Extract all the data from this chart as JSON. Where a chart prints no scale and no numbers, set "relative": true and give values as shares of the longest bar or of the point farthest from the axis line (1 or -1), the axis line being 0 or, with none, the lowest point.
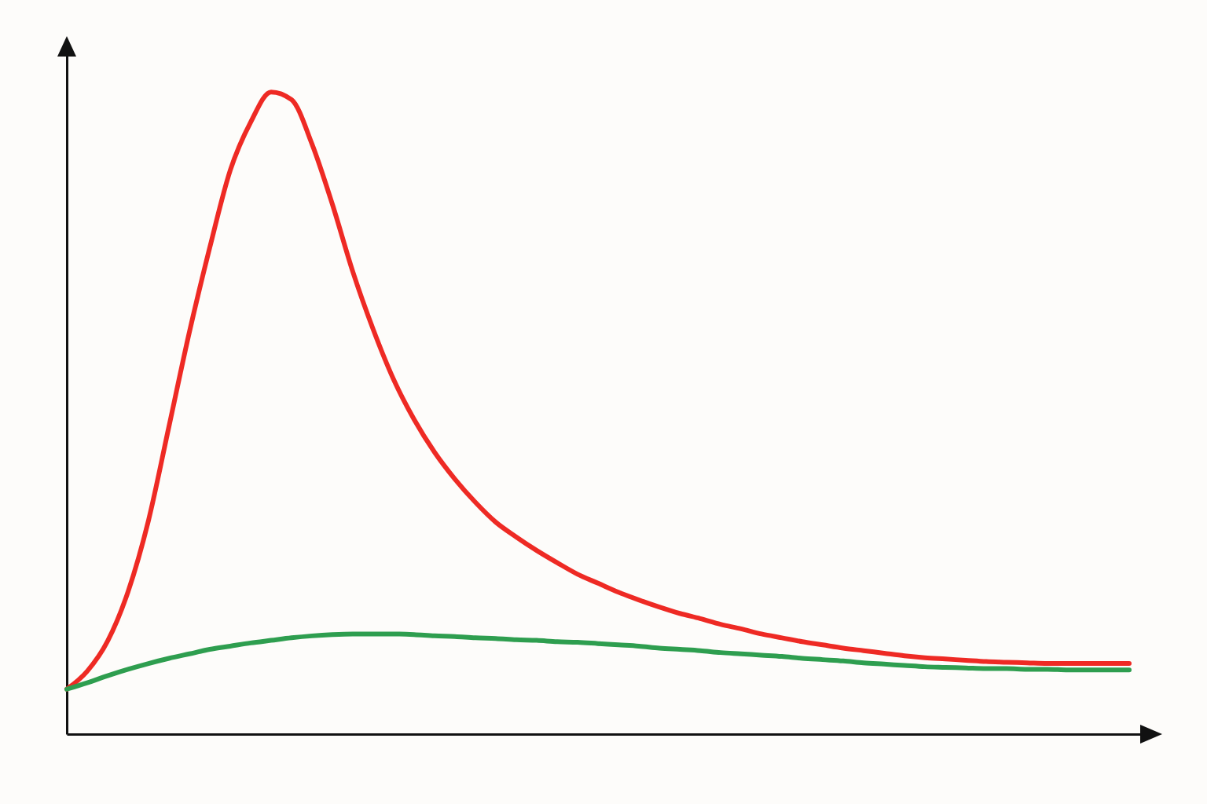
{
  "chart_data": {
    "type": "line",
    "relative": true,
    "categories": [
      null,
      null,
      null,
      null,
      null,
      null,
      null,
      null,
      null,
      null,
      null,
      null,
      null,
      null,
      null,
      null,
      null,
      null,
      null,
      null,
      null,
      null,
      null,
      null,
      null,
      null,
      null,
      null,
      null,
      null,
      null,
      null,
      null,
      null,
      null,
      null,
      null,
      null,
      null,
      null,
      null,
      null,
      null,
      null,
      null,
      null,
      null,
      null,
      null,
      null,
      null,
      null,
      null
    ],
    "series": [
      {
        "color": "#ee2a24",
        "values": [
          0.07,
          0.098,
          0.145,
          0.222,
          0.333,
          0.479,
          0.626,
          0.758,
          0.878,
          0.953,
          1.0,
          0.988,
          0.919,
          0.825,
          0.72,
          0.63,
          0.552,
          0.49,
          0.439,
          0.397,
          0.361,
          0.33,
          0.307,
          0.286,
          0.267,
          0.249,
          0.235,
          0.221,
          0.209,
          0.198,
          0.188,
          0.18,
          0.171,
          0.164,
          0.156,
          0.15,
          0.144,
          0.139,
          0.134,
          0.13,
          0.126,
          0.122,
          0.119,
          0.117,
          0.115,
          0.113,
          0.112,
          0.111,
          0.11,
          0.11,
          0.11,
          0.11,
          0.11
        ]
      },
      {
        "color": "#2e9e4f",
        "values": [
          0.07,
          0.08,
          0.091,
          0.101,
          0.11,
          0.118,
          0.125,
          0.132,
          0.137,
          0.142,
          0.146,
          0.15,
          0.153,
          0.155,
          0.156,
          0.156,
          0.156,
          0.155,
          0.153,
          0.152,
          0.15,
          0.149,
          0.147,
          0.146,
          0.144,
          0.143,
          0.141,
          0.139,
          0.137,
          0.134,
          0.132,
          0.13,
          0.127,
          0.125,
          0.123,
          0.121,
          0.118,
          0.116,
          0.114,
          0.111,
          0.109,
          0.107,
          0.105,
          0.104,
          0.103,
          0.102,
          0.102,
          0.101,
          0.101,
          0.1,
          0.1,
          0.1,
          0.1
        ]
      }
    ]
  }
}
